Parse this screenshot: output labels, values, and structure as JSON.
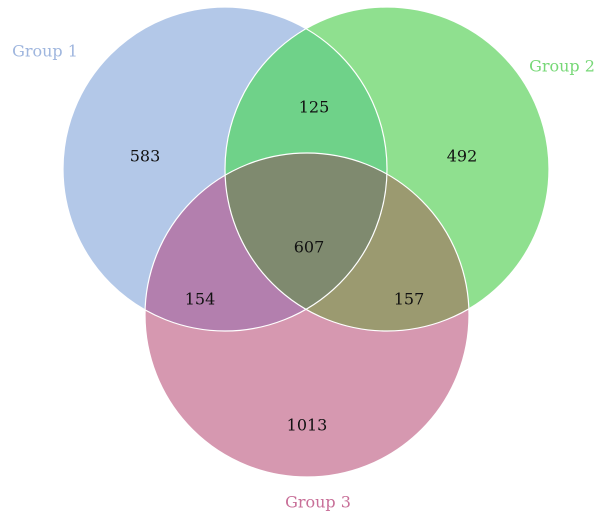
{
  "diagram": {
    "type": "venn3",
    "sets": [
      {
        "id": "g1",
        "label": "Group 1",
        "color": "#b3c8e8"
      },
      {
        "id": "g2",
        "label": "Group 2",
        "color": "#8fe08f"
      },
      {
        "id": "g3",
        "label": "Group 3",
        "color": "#d698b0"
      }
    ],
    "label_colors": {
      "g1": "#9fb6de",
      "g2": "#77d877",
      "g3": "#c86f98"
    },
    "regions": {
      "g1_only": "583",
      "g2_only": "492",
      "g3_only": "1013",
      "g1_g2": "125",
      "g1_g3": "154",
      "g2_g3": "157",
      "g1_g2_g3": "607"
    },
    "overlap_colors": {
      "g1_g2": "#6fd289",
      "g1_g3": "#b37fae",
      "g2_g3": "#9b9a70",
      "g1_g2_g3": "#7f8a6f"
    },
    "outline_color": "#ffffff"
  }
}
